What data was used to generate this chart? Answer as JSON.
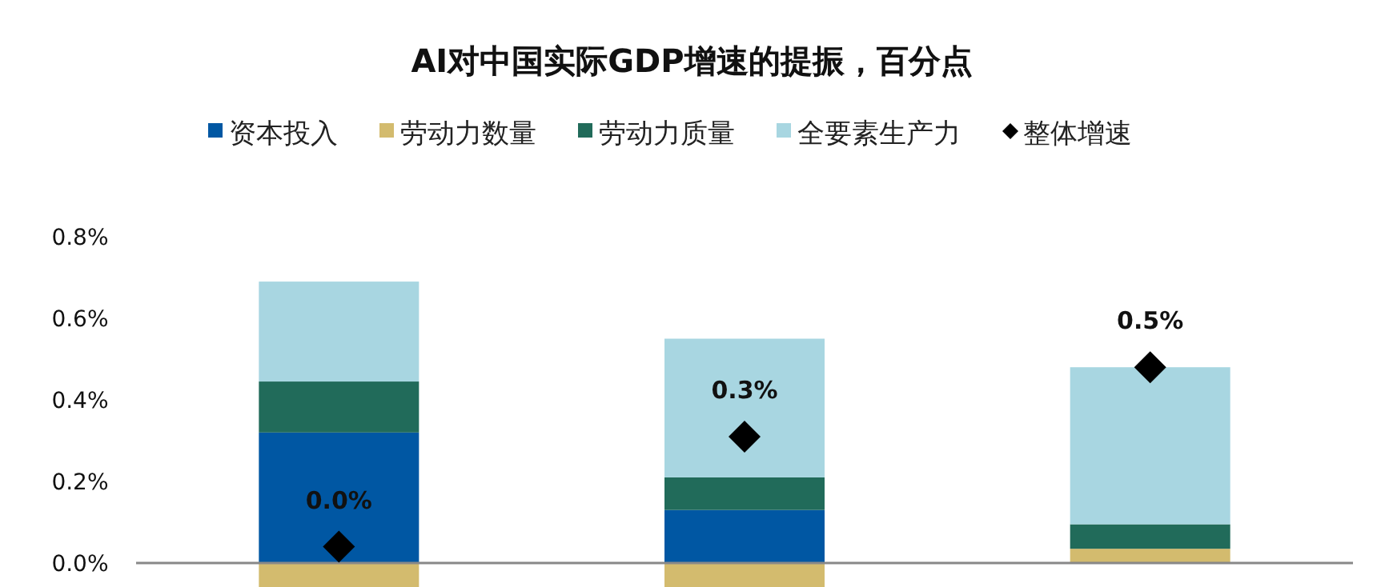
{
  "chart_data": {
    "type": "bar",
    "title": "AI对中国实际GDP增速的提振，百分点",
    "stacked": true,
    "categories": [
      null,
      null,
      null
    ],
    "series": [
      {
        "name": "资本投入",
        "color": "#0057a3",
        "values": [
          0.32,
          0.13,
          0
        ]
      },
      {
        "name": "劳动力数量",
        "color": "#d3bb6e",
        "values": [
          -0.06,
          -0.06,
          0.035
        ]
      },
      {
        "name": "劳动力质量",
        "color": "#216b5a",
        "values": [
          0.125,
          0.08,
          0.06
        ]
      },
      {
        "name": "全要素生产力",
        "color": "#a8d6e1",
        "values": [
          0.245,
          0.34,
          0.385
        ]
      },
      {
        "name": "整体增速",
        "type": "scatter",
        "marker": "diamond",
        "color": "#000000",
        "values": [
          0.04,
          0.31,
          0.48
        ],
        "value_labels": [
          "0.0%",
          "0.3%",
          "0.5%"
        ]
      }
    ],
    "ylim": [
      -0.06,
      0.8
    ],
    "yticks": [
      {
        "value": 0,
        "label": "0.0%"
      },
      {
        "value": 0.2,
        "label": "0.2%"
      },
      {
        "value": 0.4,
        "label": "0.4%"
      },
      {
        "value": 0.6,
        "label": "0.6%"
      },
      {
        "value": 0.8,
        "label": "0.8%"
      }
    ],
    "legend": "top"
  }
}
